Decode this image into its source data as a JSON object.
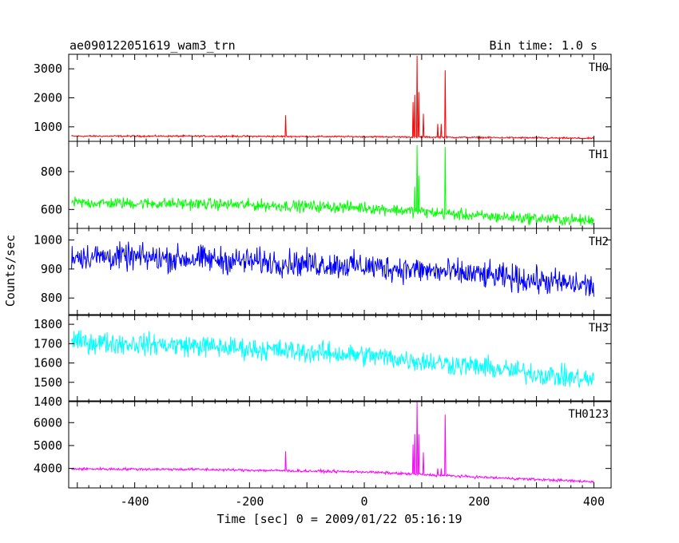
{
  "header": {
    "title": "ae090122051619_wam3_trn",
    "bin_time": "Bin time: 1.0 s"
  },
  "chart_data": {
    "type": "line",
    "xlabel": "Time [sec] 0 = 2009/01/22 05:16:19",
    "ylabel": "Counts/sec",
    "xlim": [
      -515,
      430
    ],
    "xticks": [
      -400,
      -200,
      0,
      200,
      400
    ],
    "panels": [
      {
        "name": "TH0",
        "color": "#ff0000",
        "ylim": [
          500,
          3500
        ],
        "yticks": [
          1000,
          2000,
          3000
        ],
        "baseline": [
          [
            -510,
            680
          ],
          [
            -300,
            680
          ],
          [
            0,
            660
          ],
          [
            300,
            620
          ],
          [
            400,
            600
          ]
        ],
        "noise": 28,
        "spikes": [
          [
            -137,
            1400
          ],
          [
            85,
            1850
          ],
          [
            88,
            2100
          ],
          [
            92,
            3450
          ],
          [
            95,
            2200
          ],
          [
            103,
            1450
          ],
          [
            128,
            1100
          ],
          [
            134,
            1100
          ],
          [
            141,
            2950
          ]
        ]
      },
      {
        "name": "TH1",
        "color": "#00ff00",
        "ylim": [
          500,
          960
        ],
        "yticks": [
          600,
          800
        ],
        "baseline": [
          [
            -510,
            635
          ],
          [
            -300,
            630
          ],
          [
            0,
            610
          ],
          [
            200,
            565
          ],
          [
            400,
            540
          ]
        ],
        "noise": 30,
        "spikes": [
          [
            88,
            720
          ],
          [
            92,
            940
          ],
          [
            95,
            780
          ],
          [
            141,
            930
          ]
        ]
      },
      {
        "name": "TH2",
        "color": "#0000ff",
        "ylim": [
          740,
          1040
        ],
        "yticks": [
          800,
          900,
          1000
        ],
        "baseline": [
          [
            -510,
            945
          ],
          [
            -300,
            935
          ],
          [
            0,
            910
          ],
          [
            200,
            880
          ],
          [
            400,
            840
          ]
        ],
        "noise": 45,
        "spikes": []
      },
      {
        "name": "TH3",
        "color": "#00ffff",
        "ylim": [
          1400,
          1850
        ],
        "yticks": [
          1400,
          1500,
          1600,
          1700,
          1800
        ],
        "baseline": [
          [
            -510,
            1710
          ],
          [
            -300,
            1690
          ],
          [
            0,
            1640
          ],
          [
            200,
            1580
          ],
          [
            400,
            1510
          ]
        ],
        "noise": 55,
        "spikes": []
      },
      {
        "name": "TH0123",
        "color": "#ff00ff",
        "ylim": [
          3150,
          6950
        ],
        "yticks": [
          4000,
          5000,
          6000
        ],
        "baseline": [
          [
            -510,
            3980
          ],
          [
            -300,
            3960
          ],
          [
            0,
            3850
          ],
          [
            200,
            3620
          ],
          [
            400,
            3420
          ]
        ],
        "noise": 55,
        "spikes": [
          [
            -137,
            4750
          ],
          [
            85,
            5050
          ],
          [
            88,
            5500
          ],
          [
            92,
            6900
          ],
          [
            95,
            5500
          ],
          [
            103,
            4700
          ],
          [
            128,
            4000
          ],
          [
            134,
            4000
          ],
          [
            141,
            6350
          ]
        ]
      }
    ]
  }
}
